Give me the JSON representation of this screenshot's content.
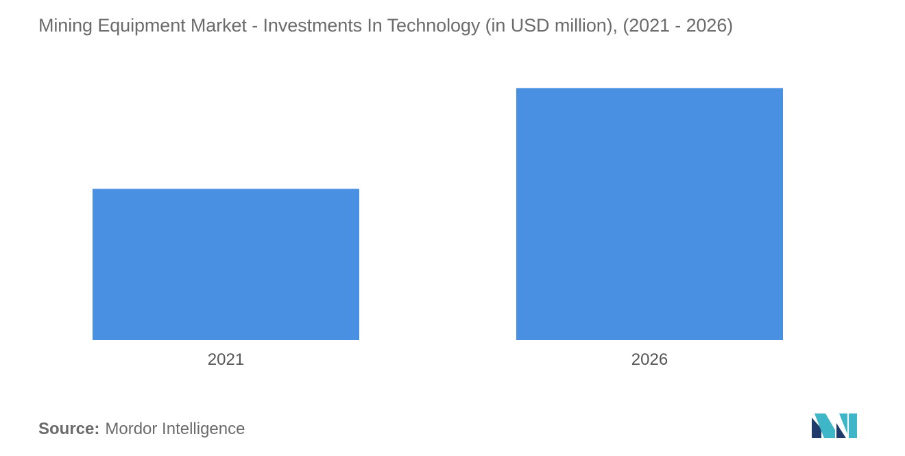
{
  "title": "Mining Equipment Market - Investments In Technology (in USD million),  (2021 - 2026)",
  "source": {
    "label": "Source:",
    "value": "Mordor Intelligence"
  },
  "logo": {
    "icon": "mordor-intelligence-logo-icon",
    "colors": [
      "#1f3b6b",
      "#3fb6c8"
    ]
  },
  "chart_data": {
    "type": "bar",
    "title": "Mining Equipment Market - Investments In Technology (in USD million),  (2021 - 2026)",
    "categories": [
      "2021",
      "2026"
    ],
    "values": [
      60,
      100
    ],
    "xlabel": "",
    "ylabel": "",
    "ylim": [
      0,
      105
    ],
    "grid": false,
    "legend": "none",
    "bar_color": "#4a90e2"
  }
}
